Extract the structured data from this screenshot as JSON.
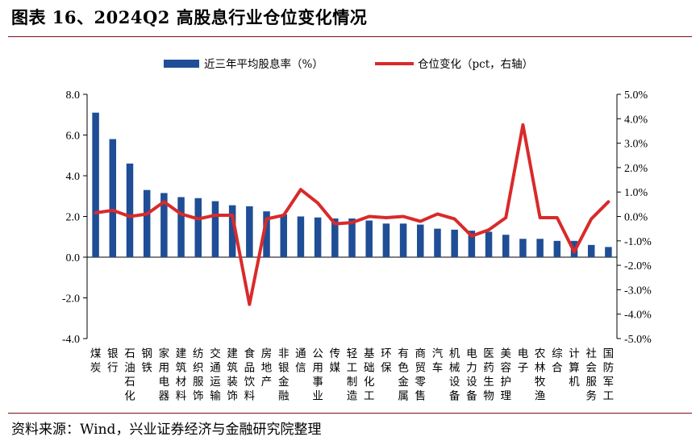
{
  "title": "图表 16、2024Q2 高股息行业仓位变化情况",
  "source": "资料来源：Wind，兴业证券经济与金融研究院整理",
  "colors": {
    "bar": "#1f4e96",
    "line": "#d92a2a",
    "rule": "#7a0f14"
  },
  "chart_data": {
    "type": "bar",
    "legend": {
      "placement": "top-center"
    },
    "categories": [
      "煤炭",
      "银行",
      "石油石化",
      "钢铁",
      "家用电器",
      "建筑材料",
      "纺织服饰",
      "交通运输",
      "建筑装饰",
      "食品饮料",
      "房地产",
      "非银金融",
      "通信",
      "公用事业",
      "传媒",
      "轻工制造",
      "基础化工",
      "环保",
      "有色金属",
      "商贸零售",
      "汽车",
      "机械设备",
      "电力设备",
      "医药生物",
      "美容护理",
      "电子",
      "农林牧渔",
      "综合",
      "计算机",
      "社会服务",
      "国防军工"
    ],
    "y_left": {
      "min": -4.0,
      "max": 8.0,
      "step": 2.0,
      "ticks": [
        "8.0",
        "6.0",
        "4.0",
        "2.0",
        "0.0",
        "-2.0",
        "-4.0"
      ]
    },
    "y_right": {
      "min": -5.0,
      "max": 5.0,
      "step": 1.0,
      "ticks": [
        "5.0%",
        "4.0%",
        "3.0%",
        "2.0%",
        "1.0%",
        "0.0%",
        "-1.0%",
        "-2.0%",
        "-3.0%",
        "-4.0%",
        "-5.0%"
      ]
    },
    "series": [
      {
        "name": "近三年平均股息率（%）",
        "type": "bar",
        "axis": "left",
        "values": [
          7.1,
          5.8,
          4.6,
          3.3,
          3.15,
          2.95,
          2.9,
          2.75,
          2.55,
          2.5,
          2.25,
          2.1,
          2.0,
          1.95,
          1.9,
          1.9,
          1.8,
          1.65,
          1.65,
          1.6,
          1.4,
          1.35,
          1.3,
          1.25,
          1.1,
          0.9,
          0.9,
          0.8,
          0.8,
          0.6,
          0.5
        ]
      },
      {
        "name": "仓位变化（pct，右轴）",
        "type": "line",
        "axis": "right",
        "values": [
          0.15,
          0.25,
          0.0,
          0.1,
          0.6,
          0.1,
          -0.1,
          0.05,
          0.05,
          -3.6,
          -0.1,
          0.05,
          1.1,
          0.55,
          -0.3,
          -0.25,
          0.0,
          -0.05,
          0.0,
          -0.2,
          0.1,
          -0.1,
          -0.8,
          -0.55,
          -0.05,
          3.75,
          -0.05,
          -0.05,
          -1.45,
          -0.1,
          0.6
        ]
      }
    ]
  }
}
